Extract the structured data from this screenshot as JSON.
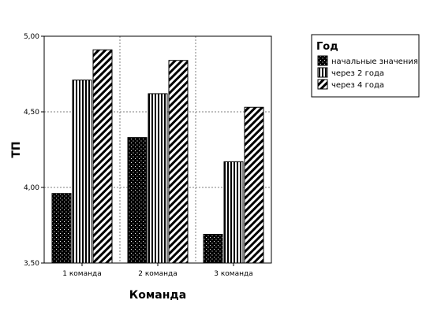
{
  "chart_data": {
    "type": "bar",
    "xlabel": "Команда",
    "ylabel": "ТП",
    "ylim": [
      3.5,
      5.0
    ],
    "yticks": [
      "3,50",
      "4,00",
      "4,50",
      "5,00"
    ],
    "ytick_values": [
      3.5,
      4.0,
      4.5,
      5.0
    ],
    "categories": [
      "1 команда",
      "2 команда",
      "3 команда"
    ],
    "grid": true,
    "legend_position": "top-right",
    "legend_title": "Год",
    "series": [
      {
        "name": "начальные значения",
        "pattern": "dots",
        "values": [
          3.96,
          4.33,
          3.69
        ]
      },
      {
        "name": "через 2 года",
        "pattern": "vertical-stripes",
        "values": [
          4.71,
          4.62,
          4.17
        ]
      },
      {
        "name": "через 4 года",
        "pattern": "diagonal-stripes",
        "values": [
          4.91,
          4.84,
          4.53
        ]
      }
    ]
  }
}
